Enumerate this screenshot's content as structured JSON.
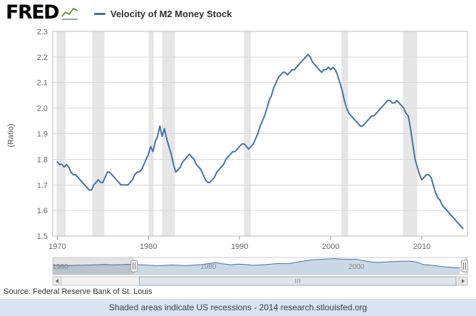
{
  "header": {
    "logo_text": "FRED",
    "legend_label": "Velocity of M2 Money Stock"
  },
  "chart_data": {
    "type": "line",
    "title": "Velocity of M2 Money Stock",
    "ylabel": "(Ratio)",
    "xlabel": "",
    "ylim": [
      1.5,
      2.3
    ],
    "xlim": [
      1969.5,
      2015
    ],
    "yticks": [
      "1.5",
      "1.6",
      "1.7",
      "1.8",
      "1.9",
      "2.0",
      "2.1",
      "2.2",
      "2.3"
    ],
    "xticks": [
      1970,
      1980,
      1990,
      2000,
      2010
    ],
    "grid": "horizontal",
    "legend_position": "top",
    "line_color": "#4572a7",
    "recession_band_color": "#e6e6e6",
    "recession_bands": [
      [
        1969.92,
        1970.92
      ],
      [
        1973.83,
        1975.17
      ],
      [
        1980.0,
        1980.58
      ],
      [
        1981.5,
        1982.92
      ],
      [
        1990.5,
        1991.25
      ],
      [
        2001.17,
        2001.92
      ],
      [
        2007.92,
        2009.5
      ]
    ],
    "series": [
      {
        "name": "Velocity of M2 Money Stock",
        "x_start": 1970,
        "x_step": 0.25,
        "values": [
          1.79,
          1.78,
          1.78,
          1.77,
          1.78,
          1.77,
          1.75,
          1.74,
          1.74,
          1.73,
          1.72,
          1.71,
          1.7,
          1.69,
          1.68,
          1.68,
          1.7,
          1.71,
          1.72,
          1.71,
          1.71,
          1.73,
          1.75,
          1.75,
          1.74,
          1.73,
          1.72,
          1.71,
          1.7,
          1.7,
          1.7,
          1.7,
          1.71,
          1.72,
          1.74,
          1.75,
          1.75,
          1.76,
          1.78,
          1.8,
          1.82,
          1.85,
          1.83,
          1.87,
          1.89,
          1.93,
          1.89,
          1.92,
          1.88,
          1.85,
          1.82,
          1.78,
          1.75,
          1.76,
          1.77,
          1.79,
          1.8,
          1.81,
          1.82,
          1.81,
          1.8,
          1.78,
          1.77,
          1.76,
          1.74,
          1.72,
          1.71,
          1.71,
          1.72,
          1.73,
          1.75,
          1.76,
          1.77,
          1.78,
          1.8,
          1.81,
          1.82,
          1.83,
          1.83,
          1.84,
          1.85,
          1.86,
          1.86,
          1.85,
          1.84,
          1.85,
          1.86,
          1.88,
          1.9,
          1.93,
          1.95,
          1.97,
          2.0,
          2.03,
          2.05,
          2.08,
          2.1,
          2.12,
          2.13,
          2.14,
          2.14,
          2.13,
          2.14,
          2.15,
          2.15,
          2.16,
          2.17,
          2.18,
          2.19,
          2.2,
          2.21,
          2.2,
          2.18,
          2.17,
          2.16,
          2.15,
          2.14,
          2.15,
          2.15,
          2.16,
          2.15,
          2.16,
          2.15,
          2.13,
          2.1,
          2.07,
          2.03,
          2.0,
          1.98,
          1.97,
          1.96,
          1.95,
          1.94,
          1.93,
          1.93,
          1.94,
          1.95,
          1.96,
          1.97,
          1.97,
          1.98,
          1.99,
          2.0,
          2.01,
          2.02,
          2.03,
          2.03,
          2.02,
          2.02,
          2.03,
          2.02,
          2.01,
          2.0,
          1.98,
          1.97,
          1.92,
          1.86,
          1.8,
          1.77,
          1.74,
          1.72,
          1.73,
          1.74,
          1.74,
          1.73,
          1.7,
          1.67,
          1.65,
          1.64,
          1.62,
          1.61,
          1.6,
          1.59,
          1.58,
          1.57,
          1.56,
          1.55,
          1.54,
          1.53
        ]
      }
    ]
  },
  "navigator": {
    "xlim": [
      1959,
      2015
    ],
    "ylim": [
      1.05,
      2.28
    ],
    "selection": [
      1970,
      2014.6
    ],
    "ticks": [
      1960,
      1980,
      2000
    ],
    "area_fill": "rgba(69,114,167,0.28)",
    "area_line": "#4572a7",
    "series": {
      "x_start": 1959,
      "x_step": 1,
      "values": [
        1.72,
        1.72,
        1.7,
        1.72,
        1.73,
        1.74,
        1.76,
        1.78,
        1.75,
        1.77,
        1.79,
        1.78,
        1.76,
        1.73,
        1.69,
        1.71,
        1.74,
        1.72,
        1.7,
        1.73,
        1.77,
        1.84,
        1.91,
        1.83,
        1.76,
        1.81,
        1.78,
        1.72,
        1.74,
        1.79,
        1.83,
        1.85,
        1.86,
        1.94,
        2.04,
        2.12,
        2.14,
        2.17,
        2.2,
        2.16,
        2.15,
        2.15,
        2.05,
        1.96,
        1.93,
        1.96,
        1.99,
        2.02,
        2.02,
        1.97,
        1.79,
        1.73,
        1.67,
        1.61,
        1.57,
        1.53
      ]
    }
  },
  "source": {
    "label": "Source:",
    "text": "Federal Reserve Bank of St. Louis"
  },
  "footer": {
    "note": "Shaded areas indicate US recessions - 2014 research.stlouisfed.org"
  }
}
